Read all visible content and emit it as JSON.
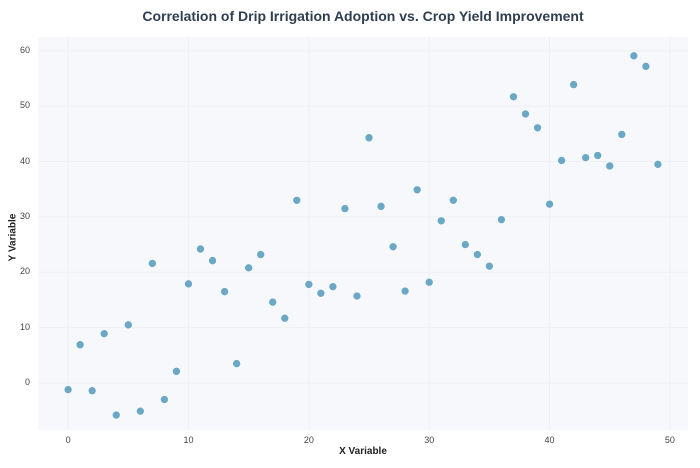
{
  "chart_data": {
    "type": "scatter",
    "title": "Correlation of Drip Irrigation Adoption vs. Crop Yield Improvement",
    "xlabel": "X Variable",
    "ylabel": "Y Variable",
    "xlim": [
      -2.5,
      51.5
    ],
    "ylim": [
      -8.5,
      62.5
    ],
    "xticks": [
      0,
      10,
      20,
      30,
      40,
      50
    ],
    "yticks": [
      0,
      10,
      20,
      30,
      40,
      50,
      60
    ],
    "grid": true,
    "legend": null,
    "marker_color": "#6aa8c6",
    "background_color": "#f7f8fb",
    "series": [
      {
        "name": "points",
        "x": [
          0,
          1,
          2,
          3,
          4,
          5,
          6,
          7,
          8,
          9,
          10,
          11,
          12,
          13,
          14,
          15,
          16,
          17,
          18,
          19,
          20,
          21,
          22,
          23,
          24,
          25,
          26,
          27,
          28,
          29,
          30,
          31,
          32,
          33,
          34,
          35,
          36,
          37,
          38,
          39,
          40,
          41,
          42,
          43,
          44,
          45,
          46,
          47,
          48,
          49
        ],
        "y": [
          -1.2,
          6.9,
          -1.4,
          8.9,
          -5.8,
          10.5,
          -5.1,
          21.6,
          -3.0,
          2.1,
          17.9,
          24.2,
          22.1,
          16.5,
          3.5,
          20.8,
          23.2,
          14.6,
          11.7,
          33.0,
          17.8,
          16.2,
          17.4,
          31.5,
          15.7,
          44.3,
          31.9,
          24.6,
          16.6,
          34.9,
          18.2,
          29.3,
          33.0,
          25.0,
          23.2,
          21.1,
          29.5,
          51.7,
          48.6,
          46.1,
          32.3,
          40.2,
          53.9,
          40.7,
          41.1,
          39.2,
          44.9,
          59.1,
          57.2,
          39.5
        ]
      }
    ]
  }
}
